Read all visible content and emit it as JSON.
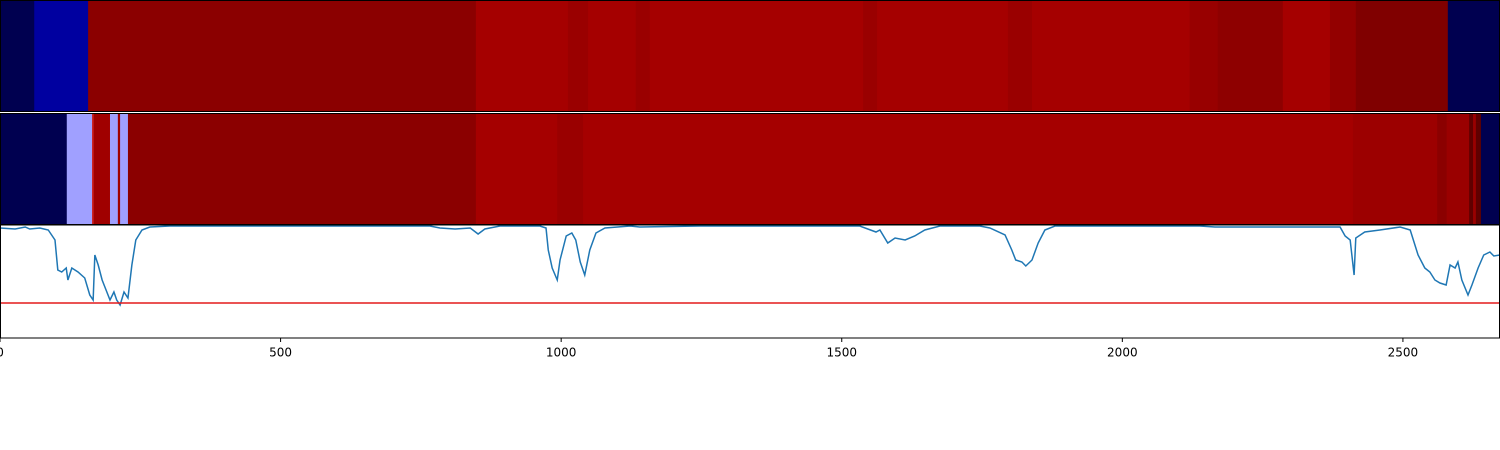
{
  "chart_data": [
    {
      "type": "strip",
      "edges": [
        0,
        61,
        157,
        848,
        1012,
        1048,
        1133,
        1158,
        1538,
        1563,
        1796,
        1839,
        2120,
        2170,
        2286,
        2370,
        2416,
        2580,
        2673
      ],
      "colors": [
        "#000050",
        "#0000a0",
        "#8b0000",
        "#a50000",
        "#9a0000",
        "#a50000",
        "#9a0000",
        "#a50000",
        "#9a0000",
        "#a50000",
        "#9a0000",
        "#a50000",
        "#980000",
        "#8e0000",
        "#a50000",
        "#930000",
        "#800000",
        "#000050"
      ],
      "xlim": [
        0,
        2673
      ]
    },
    {
      "type": "strip",
      "edges": [
        0,
        119,
        164,
        167,
        196,
        210,
        214,
        228,
        848,
        993,
        1039,
        2411,
        2561,
        2578,
        2618,
        2625,
        2630,
        2639,
        2673
      ],
      "colors": [
        "#000050",
        "#a0a0ff",
        "#cc2020",
        "#a00000",
        "#a0a0ff",
        "#a00000",
        "#a0a0ff",
        "#8b0000",
        "#a50000",
        "#9a0000",
        "#a50000",
        "#9c0000",
        "#8b0000",
        "#9a0000",
        "#600000",
        "#9a0000",
        "#600000",
        "#000050"
      ],
      "xlim": [
        0,
        2673
      ]
    },
    {
      "type": "line",
      "x": [
        0,
        27,
        45,
        53,
        71,
        86,
        98,
        103,
        110,
        118,
        121,
        128,
        139,
        151,
        160,
        166,
        169,
        175,
        182,
        189,
        196,
        203,
        208,
        214,
        221,
        228,
        235,
        242,
        253,
        267,
        303,
        535,
        766,
        784,
        811,
        838,
        852,
        864,
        891,
        962,
        973,
        977,
        984,
        993,
        998,
        1009,
        1019,
        1026,
        1034,
        1042,
        1051,
        1062,
        1078,
        1123,
        1140,
        1247,
        1532,
        1561,
        1568,
        1582,
        1595,
        1613,
        1630,
        1648,
        1675,
        1746,
        1764,
        1791,
        1803,
        1810,
        1821,
        1828,
        1839,
        1850,
        1862,
        1880,
        2138,
        2165,
        2388,
        2397,
        2406,
        2413,
        2416,
        2432,
        2459,
        2495,
        2513,
        2527,
        2539,
        2548,
        2557,
        2566,
        2577,
        2584,
        2593,
        2598,
        2605,
        2616,
        2623,
        2634,
        2644,
        2655,
        2662,
        2673
      ],
      "series": [
        {
          "color": "#1f77b4",
          "values": [
            110,
            109,
            111,
            109,
            110,
            108,
            98,
            68,
            66,
            70,
            58,
            70,
            66,
            60,
            43,
            38,
            83,
            73,
            58,
            48,
            38,
            46,
            38,
            33,
            46,
            40,
            73,
            98,
            108,
            111,
            112,
            112,
            112,
            110,
            109,
            110,
            104,
            109,
            112,
            112,
            110,
            88,
            70,
            58,
            78,
            102,
            105,
            98,
            76,
            63,
            88,
            105,
            110,
            112,
            111,
            112,
            112,
            106,
            108,
            95,
            100,
            98,
            102,
            108,
            112,
            112,
            110,
            103,
            88,
            78,
            76,
            72,
            78,
            95,
            108,
            112,
            112,
            111,
            111,
            102,
            98,
            63,
            100,
            106,
            108,
            111,
            108,
            83,
            70,
            66,
            58,
            55,
            53,
            73,
            70,
            76,
            58,
            43,
            53,
            70,
            83,
            86,
            82,
            83
          ]
        }
      ],
      "threshold": 35,
      "threshold_color": "#e41a1c",
      "xlim": [
        0,
        2673
      ],
      "ylim": [
        0,
        113
      ],
      "xticks": [
        0,
        500,
        1000,
        1500,
        2000,
        2500
      ]
    }
  ]
}
